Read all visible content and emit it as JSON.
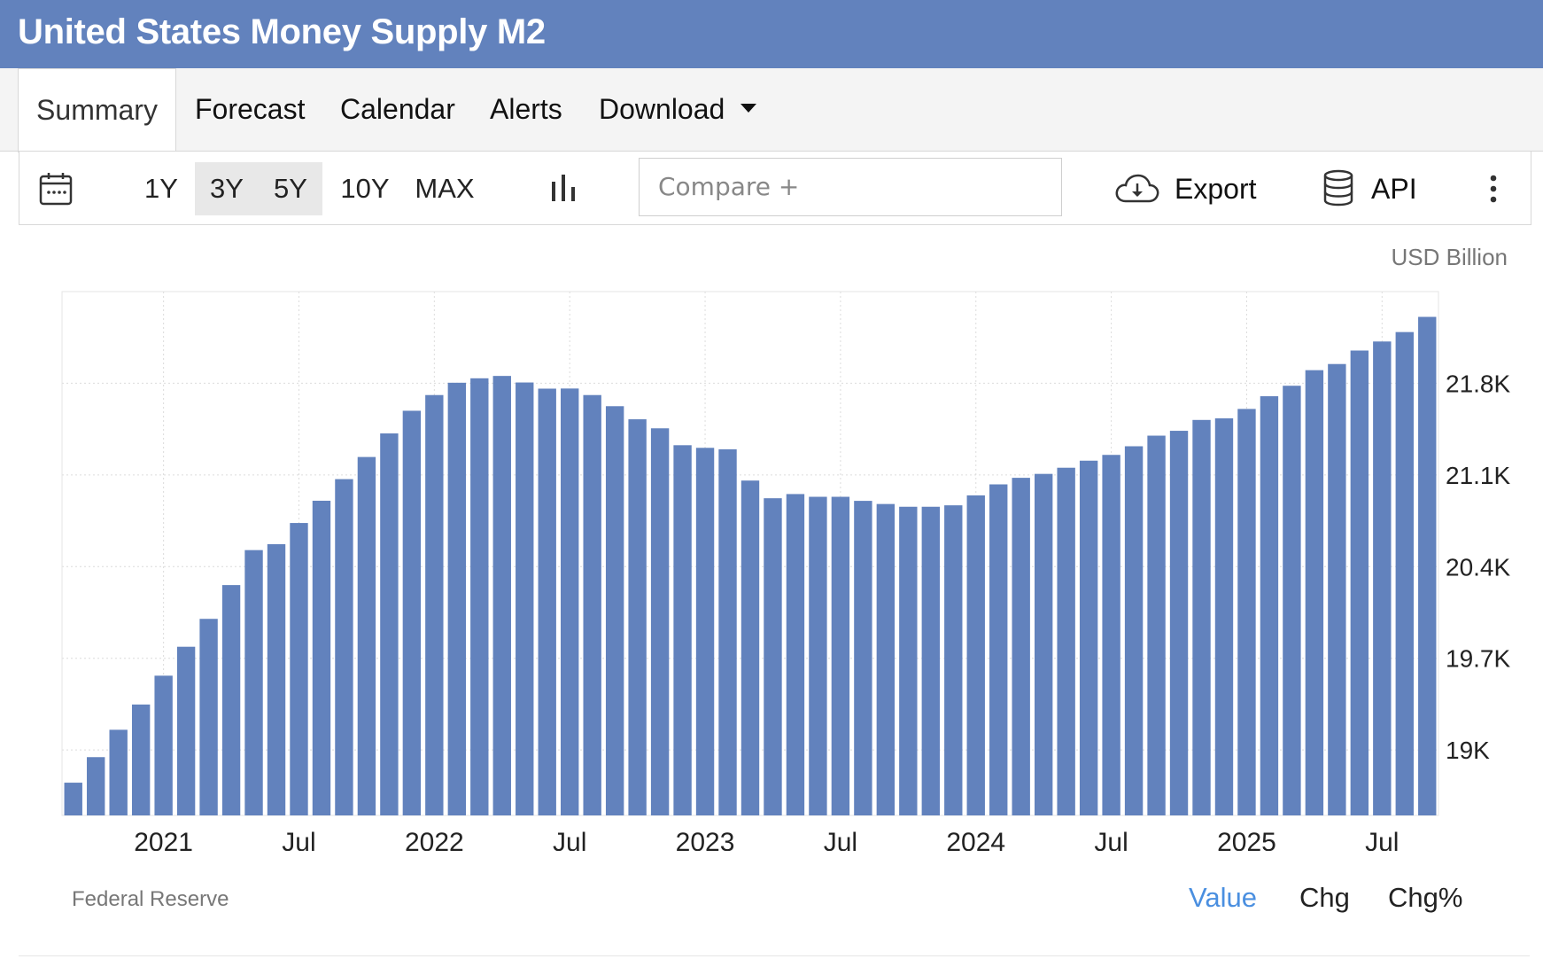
{
  "header": {
    "title": "United States Money Supply M2"
  },
  "tabs": [
    {
      "label": "Summary",
      "active": true
    },
    {
      "label": "Forecast",
      "active": false
    },
    {
      "label": "Calendar",
      "active": false
    },
    {
      "label": "Alerts",
      "active": false
    },
    {
      "label": "Download",
      "active": false
    }
  ],
  "toolbar": {
    "ranges": [
      {
        "label": "1Y",
        "selected": false
      },
      {
        "label": "3Y",
        "selected": true
      },
      {
        "label": "5Y",
        "selected": true
      },
      {
        "label": "10Y",
        "selected": false
      },
      {
        "label": "MAX",
        "selected": false
      }
    ],
    "compare_placeholder": "Compare +",
    "export_label": "Export",
    "api_label": "API"
  },
  "colors": {
    "header": "#6282bd",
    "bar": "#6282bd",
    "active_link": "#4a8fe0"
  },
  "chart_data": {
    "type": "bar",
    "unit": "USD Billion",
    "ylim": [
      18500,
      22500
    ],
    "yticks": [
      {
        "value": 19000,
        "label": "19K"
      },
      {
        "value": 19700,
        "label": "19.7K"
      },
      {
        "value": 20400,
        "label": "20.4K"
      },
      {
        "value": 21100,
        "label": "21.1K"
      },
      {
        "value": 21800,
        "label": "21.8K"
      }
    ],
    "xticks": [
      {
        "label": "2021",
        "index": 4.5
      },
      {
        "label": "Jul",
        "index": 10.5
      },
      {
        "label": "2022",
        "index": 16.5
      },
      {
        "label": "Jul",
        "index": 22.5
      },
      {
        "label": "2023",
        "index": 28.5
      },
      {
        "label": "Jul",
        "index": 34.5
      },
      {
        "label": "2024",
        "index": 40.5
      },
      {
        "label": "Jul",
        "index": 46.5
      },
      {
        "label": "2025",
        "index": 52.5
      },
      {
        "label": "Jul",
        "index": 58.5
      }
    ],
    "grid": true,
    "values": [
      18750,
      18945,
      19154,
      19347,
      19567,
      19788,
      20001,
      20259,
      20526,
      20571,
      20733,
      20903,
      21068,
      21237,
      21417,
      21590,
      21710,
      21804,
      21838,
      21856,
      21806,
      21759,
      21760,
      21710,
      21625,
      21525,
      21456,
      21327,
      21307,
      21296,
      21057,
      20922,
      20954,
      20933,
      20933,
      20902,
      20878,
      20857,
      20857,
      20868,
      20944,
      21028,
      21078,
      21108,
      21155,
      21209,
      21253,
      21319,
      21400,
      21437,
      21520,
      21532,
      21604,
      21701,
      21781,
      21900,
      21947,
      22050,
      22119,
      22191,
      22307
    ]
  },
  "source": "Federal Reserve",
  "view_toggle": [
    {
      "label": "Value",
      "active": true
    },
    {
      "label": "Chg",
      "active": false
    },
    {
      "label": "Chg%",
      "active": false
    }
  ]
}
